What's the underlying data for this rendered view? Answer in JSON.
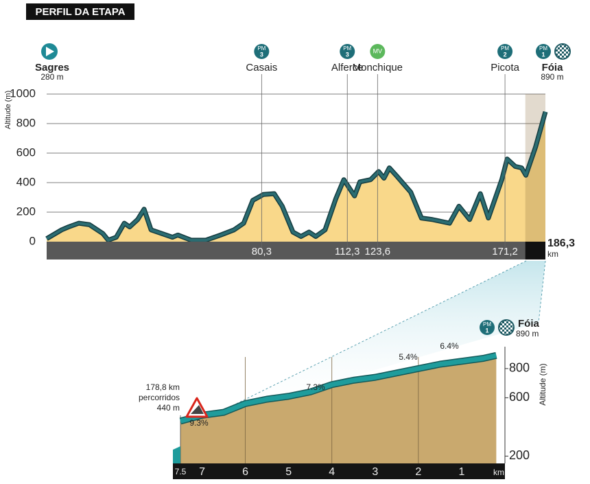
{
  "chart_data": [
    {
      "type": "area",
      "title": "PERFIL DA ETAPA",
      "y_label": "Altitude (m)",
      "x_unit": "km",
      "x": [
        0,
        5.6,
        8.2,
        12,
        16,
        21,
        23,
        26,
        29,
        31,
        34,
        36.4,
        39,
        43,
        47,
        49,
        54,
        59.5,
        65,
        70,
        73.6,
        77,
        81,
        85,
        88,
        92,
        95,
        98,
        100.5,
        104,
        108,
        111,
        115,
        117,
        121,
        124,
        126,
        128,
        131,
        136,
        140,
        144,
        150.5,
        154,
        158,
        162,
        165,
        170,
        172,
        175,
        177.4,
        179,
        182.6,
        186.3
      ],
      "values": [
        20,
        80,
        100,
        125,
        115,
        55,
        10,
        30,
        125,
        100,
        150,
        220,
        80,
        55,
        30,
        45,
        10,
        10,
        45,
        80,
        125,
        280,
        320,
        325,
        240,
        65,
        35,
        65,
        35,
        80,
        290,
        420,
        310,
        405,
        420,
        475,
        430,
        500,
        440,
        335,
        160,
        150,
        125,
        240,
        150,
        325,
        160,
        420,
        560,
        510,
        500,
        450,
        640,
        880
      ],
      "color": "#f9d88a",
      "line_color": "#2b6d72",
      "xlim": [
        0,
        186.3
      ],
      "ylim": [
        0,
        1000
      ],
      "yticks": [
        0,
        200,
        400,
        600,
        800,
        1000
      ],
      "xticks": [
        {
          "value": 80.3,
          "label": "80,3"
        },
        {
          "value": 112.3,
          "label": "112,3"
        },
        {
          "value": 123.6,
          "label": "123,6"
        },
        {
          "value": 171.2,
          "label": "171,2"
        },
        {
          "value": 186.3,
          "label": "186,3"
        }
      ],
      "final_climb_start": 178.8,
      "grid": true,
      "waypoints": [
        {
          "name": "Sagres",
          "altitude": "280 m"
        },
        {
          "name": "Casais",
          "badge": "PM",
          "category": "3"
        },
        {
          "name": "Alferce",
          "badge": "PM",
          "category": "3"
        },
        {
          "name": "Monchique",
          "badge": "MV"
        },
        {
          "name": "Picota",
          "badge": "PM",
          "category": "2"
        },
        {
          "name": "Fóia",
          "badge": "PM",
          "category": "1",
          "altitude": "890 m"
        }
      ]
    },
    {
      "type": "area",
      "y_label": "Altitude (m)",
      "x_unit": "km",
      "x": [
        7.5,
        7,
        6.5,
        6,
        5.5,
        5,
        4.5,
        4,
        3.5,
        3,
        2.5,
        2,
        1.5,
        1,
        0.5,
        0.2
      ],
      "values": [
        440,
        480,
        500,
        560,
        590,
        610,
        640,
        690,
        720,
        740,
        770,
        800,
        830,
        850,
        870,
        890
      ],
      "color": "#c9a96e",
      "line_color": "#1e9c9c",
      "xlim": [
        7.5,
        0
      ],
      "ylim": [
        150,
        950
      ],
      "yticks": [
        200,
        600,
        800
      ],
      "xticks": [
        7.5,
        7,
        6,
        5,
        4,
        3,
        2,
        1
      ],
      "start_note": [
        "178,8 km",
        "percorridos",
        "440 m"
      ],
      "gradients": [
        "9.3%",
        "7.3%",
        "5.4%",
        "6.4%"
      ],
      "finish": {
        "name": "Fóia",
        "badge": "PM",
        "category": "1",
        "altitude": "890 m"
      }
    }
  ]
}
